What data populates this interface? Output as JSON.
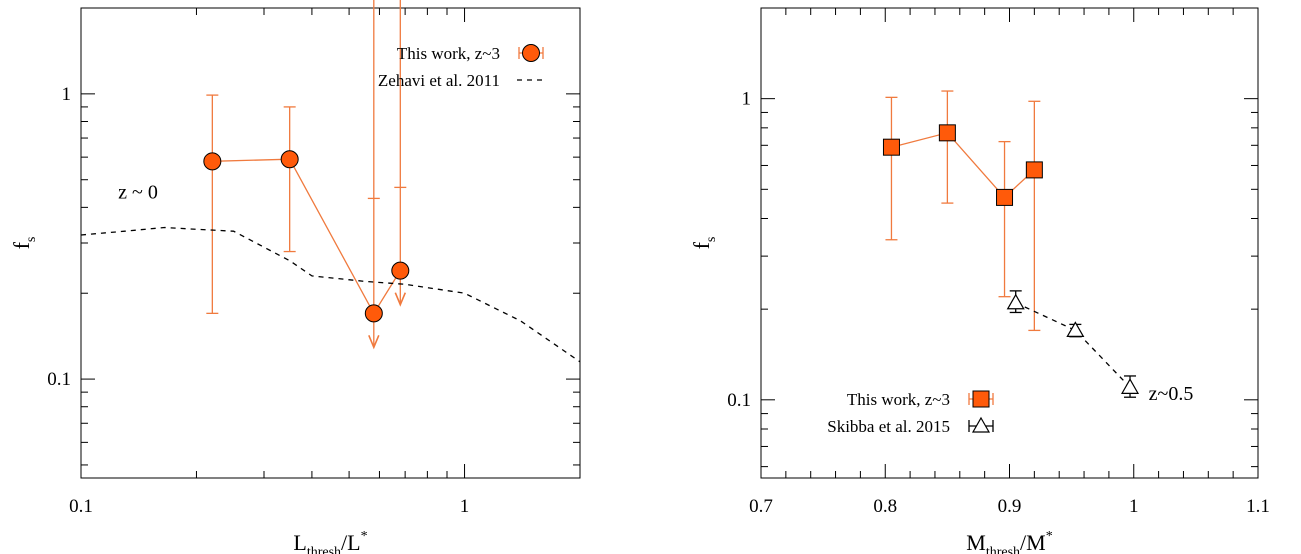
{
  "colors": {
    "orange": "#ff5a0a",
    "orange_line": "#f07a3e",
    "black": "#000000"
  },
  "chart_data": [
    {
      "type": "scatter",
      "xscale": "log",
      "yscale": "log",
      "xlim": [
        0.1,
        2
      ],
      "ylim": [
        0.045,
        2
      ],
      "xticks": [
        {
          "v": 0.1,
          "label": "0.1"
        },
        {
          "v": 1,
          "label": "1"
        }
      ],
      "yticks": [
        {
          "v": 0.1,
          "label": "0.1"
        },
        {
          "v": 1,
          "label": "1"
        }
      ],
      "xlabel": {
        "main": "L",
        "sub": "thresh",
        "rest": "/L",
        "sup": "*"
      },
      "ylabel": {
        "main": "f",
        "sub": "s"
      },
      "series": [
        {
          "name": "This work, z~3",
          "marker": "circle",
          "color": "#ff5a0a",
          "points": [
            {
              "x": 0.22,
              "y": 0.58,
              "ylo": 0.17,
              "yhi": 0.99
            },
            {
              "x": 0.35,
              "y": 0.59,
              "ylo": 0.28,
              "yhi": 0.9
            },
            {
              "x": 0.58,
              "y": 0.17,
              "yhi": 0.43,
              "upper_limit": true
            },
            {
              "x": 0.68,
              "y": 0.24,
              "yhi": 0.47,
              "upper_limit": true
            }
          ]
        },
        {
          "name": "Zehavi et al. 2011",
          "style": "dashed",
          "color": "#000000",
          "points": [
            {
              "x": 0.1,
              "y": 0.32
            },
            {
              "x": 0.13,
              "y": 0.33
            },
            {
              "x": 0.165,
              "y": 0.34
            },
            {
              "x": 0.2,
              "y": 0.335
            },
            {
              "x": 0.25,
              "y": 0.33
            },
            {
              "x": 0.3,
              "y": 0.29
            },
            {
              "x": 0.35,
              "y": 0.26
            },
            {
              "x": 0.4,
              "y": 0.23
            },
            {
              "x": 0.55,
              "y": 0.22
            },
            {
              "x": 0.7,
              "y": 0.215
            },
            {
              "x": 1.0,
              "y": 0.2
            },
            {
              "x": 1.4,
              "y": 0.16
            },
            {
              "x": 2.0,
              "y": 0.115
            }
          ]
        }
      ],
      "annotations": [
        {
          "text": "z ~ 0",
          "x": 0.125,
          "y": 0.43
        }
      ],
      "legend": {
        "position": "top-right",
        "entries": [
          {
            "label": "This work, z~3",
            "symbol": "circle-errorbar"
          },
          {
            "label": "Zehavi et al. 2011",
            "symbol": "dashed"
          }
        ]
      }
    },
    {
      "type": "scatter",
      "xscale": "linear",
      "yscale": "log",
      "xlim": [
        0.7,
        1.1
      ],
      "ylim": [
        0.055,
        2
      ],
      "xticks": [
        {
          "v": 0.7,
          "label": "0.7"
        },
        {
          "v": 0.8,
          "label": "0.8"
        },
        {
          "v": 0.9,
          "label": "0.9"
        },
        {
          "v": 1.0,
          "label": "1"
        },
        {
          "v": 1.1,
          "label": "1.1"
        }
      ],
      "yticks": [
        {
          "v": 0.1,
          "label": "0.1"
        },
        {
          "v": 1,
          "label": "1"
        }
      ],
      "xlabel": {
        "main": "M",
        "sub": "thresh",
        "rest": "/M",
        "sup": "*"
      },
      "ylabel": {
        "main": "f",
        "sub": "s"
      },
      "series": [
        {
          "name": "This work, z~3",
          "marker": "square",
          "color": "#ff5a0a",
          "points": [
            {
              "x": 0.805,
              "y": 0.69,
              "ylo": 0.34,
              "yhi": 1.01
            },
            {
              "x": 0.85,
              "y": 0.77,
              "ylo": 0.45,
              "yhi": 1.06
            },
            {
              "x": 0.896,
              "y": 0.47,
              "ylo": 0.22,
              "yhi": 0.72
            },
            {
              "x": 0.92,
              "y": 0.58,
              "ylo": 0.17,
              "yhi": 0.98
            }
          ]
        },
        {
          "name": "Skibba et al. 2015",
          "marker": "triangle",
          "style": "dashed",
          "color": "#000000",
          "points": [
            {
              "x": 0.905,
              "y": 0.21,
              "ylo": 0.195,
              "yhi": 0.23
            },
            {
              "x": 0.953,
              "y": 0.17,
              "ylo": 0.162,
              "yhi": 0.178
            },
            {
              "x": 0.997,
              "y": 0.11,
              "ylo": 0.102,
              "yhi": 0.12
            }
          ]
        }
      ],
      "annotations": [
        {
          "text": "z~0.5",
          "x": 1.012,
          "y": 0.1
        }
      ],
      "legend": {
        "position": "bottom-left",
        "entries": [
          {
            "label": "This work, z~3",
            "symbol": "square-errorbar"
          },
          {
            "label": "Skibba et al. 2015",
            "symbol": "triangle-errorbar"
          }
        ]
      }
    }
  ]
}
